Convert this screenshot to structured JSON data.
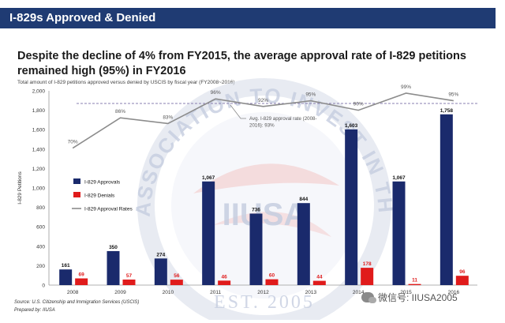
{
  "header": {
    "title": "I-829s Approved & Denied"
  },
  "headline": "Despite the decline of 4% from FY2015, the average approval rate of I-829 petitions remained high (95%) in FY2016",
  "watermark": {
    "org_text": "ASSOCIATION TO INVEST IN THE USA",
    "logo_text": "IIUSA",
    "est_text": "EST. 2005"
  },
  "footer": {
    "source": "Source: U.S. Citizenship and Immigration Services (USCIS)",
    "prepared_by": "Prepared by: IIUSA"
  },
  "wechat": {
    "label": "微信号: IIUSA2005"
  },
  "colors": {
    "header_bg": "#1f3b73",
    "approvals": "#1a2a6c",
    "denials": "#e01b1b",
    "rate_line": "#8c8c8c",
    "avg_line": "#8a7fb0"
  },
  "chart_data": {
    "type": "bar",
    "title": "",
    "subtitle": "Total amount of I-829 petitions approved versus denied by USCIS by fiscal year (FY2008~2016)",
    "ylabel": "I-829 Petitions",
    "xlabel": "",
    "ylim": [
      0,
      2000
    ],
    "yticks": [
      "0",
      "200",
      "400",
      "600",
      "800",
      "1,000",
      "1,200",
      "1,400",
      "1,600",
      "1,800",
      "2,000"
    ],
    "categories": [
      "2008",
      "2009",
      "2010",
      "2011",
      "2012",
      "2013",
      "2014",
      "2015",
      "2016"
    ],
    "series": [
      {
        "name": "I-829 Approvals",
        "values": [
          161,
          350,
          274,
          1067,
          736,
          844,
          1603,
          1067,
          1758
        ],
        "labels": [
          "161",
          "350",
          "274",
          "1,067",
          "736",
          "844",
          "1,603",
          "1,067",
          "1,758"
        ]
      },
      {
        "name": "I-829 Denials",
        "values": [
          69,
          57,
          56,
          46,
          60,
          44,
          178,
          11,
          96
        ],
        "labels": [
          "69",
          "57",
          "56",
          "46",
          "60",
          "44",
          "178",
          "11",
          "96"
        ]
      }
    ],
    "rate_series": {
      "name": "I-829 Approval Rates",
      "values": [
        70,
        86,
        83,
        96,
        92,
        95,
        90,
        99,
        95
      ],
      "labels": [
        "70%",
        "86%",
        "83%",
        "96%",
        "92%",
        "95%",
        "90%",
        "99%",
        "95%"
      ]
    },
    "average": {
      "value": 93,
      "label": "Avg. I-829 approval rate (2008-2016): 93%"
    },
    "legend": "left",
    "grid": false
  }
}
